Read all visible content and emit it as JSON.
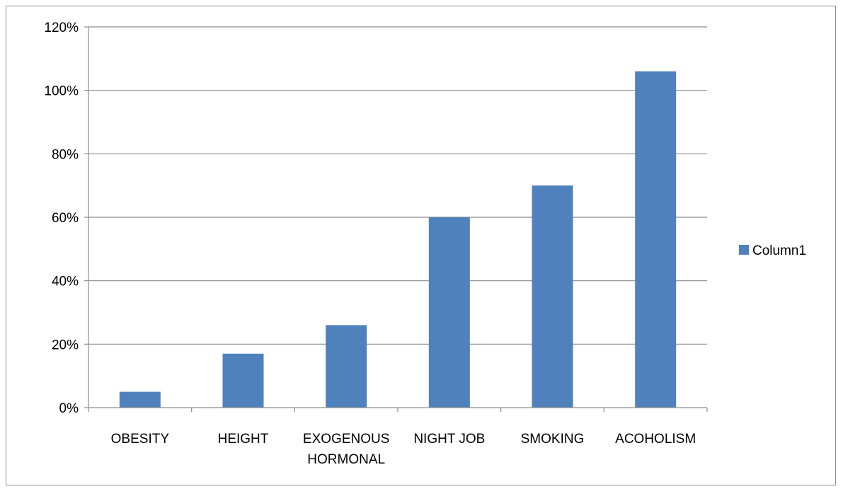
{
  "chart_data": {
    "type": "bar",
    "categories": [
      "OBESITY",
      "HEIGHT",
      "EXOGENOUS HORMONAL",
      "NIGHT JOB",
      "SMOKING",
      "ACOHOLISM"
    ],
    "series": [
      {
        "name": "Column1",
        "values": [
          5,
          17,
          26,
          60,
          70,
          106
        ]
      }
    ],
    "value_unit": "%",
    "ylim": [
      0,
      120
    ],
    "yticks": [
      "0%",
      "20%",
      "40%",
      "60%",
      "80%",
      "100%",
      "120%"
    ],
    "title": "",
    "xlabel": "",
    "ylabel": "",
    "grid": "horizontal",
    "legend_position": "right",
    "bar_color": "#4F81BD"
  }
}
